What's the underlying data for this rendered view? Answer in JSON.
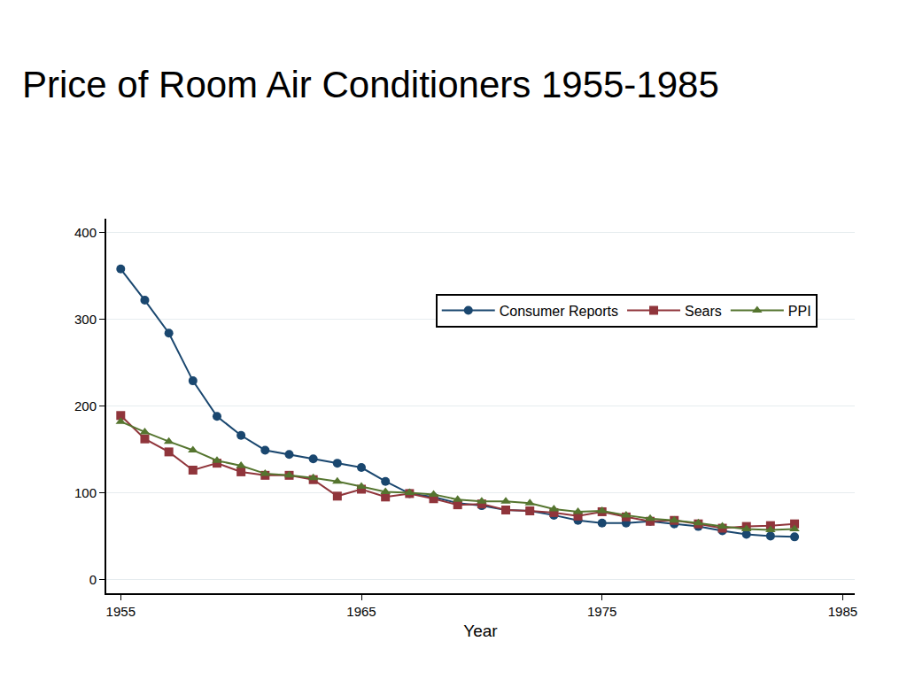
{
  "chart_data": {
    "type": "line",
    "title": "Price of Room Air Conditioners 1955-1985",
    "x_label": "Year",
    "x": [
      1955,
      1956,
      1957,
      1958,
      1959,
      1960,
      1961,
      1962,
      1963,
      1964,
      1965,
      1966,
      1967,
      1968,
      1969,
      1970,
      1971,
      1972,
      1973,
      1974,
      1975,
      1976,
      1977,
      1978,
      1979,
      1980,
      1981,
      1982,
      1983
    ],
    "series": [
      {
        "name": "Consumer Reports",
        "color": "#1a476f",
        "marker": "circle",
        "line_style": "solid",
        "values": [
          358,
          322,
          284,
          229,
          188,
          166,
          149,
          144,
          139,
          134,
          129,
          113,
          99,
          95,
          88,
          85,
          80,
          79,
          74,
          68,
          65,
          65,
          67,
          64,
          61,
          56,
          52,
          50,
          49
        ]
      },
      {
        "name": "Sears",
        "color": "#90353b",
        "marker": "square",
        "line_style": "solid",
        "values": [
          189,
          162,
          147,
          126,
          134,
          124,
          120,
          120,
          115,
          96,
          104,
          95,
          99,
          93,
          86,
          87,
          80,
          79,
          77,
          73,
          78,
          72,
          67,
          68,
          64,
          59,
          61,
          62,
          64
        ]
      },
      {
        "name": "PPI",
        "color": "#55752f",
        "marker": "triangle-up",
        "line_style": "solid",
        "values": [
          182,
          170,
          159,
          149,
          137,
          131,
          122,
          120,
          117,
          113,
          107,
          101,
          100,
          98,
          92,
          90,
          90,
          88,
          81,
          78,
          79,
          74,
          70,
          68,
          65,
          61,
          58,
          57,
          58
        ]
      }
    ],
    "xlim": [
      1954.4,
      1985.5
    ],
    "xticks": [
      1955,
      1965,
      1975,
      1985
    ],
    "ylim": [
      -16,
      416
    ],
    "yticks": [
      0,
      100,
      200,
      300,
      400
    ],
    "grid": true,
    "legend": "top right"
  }
}
